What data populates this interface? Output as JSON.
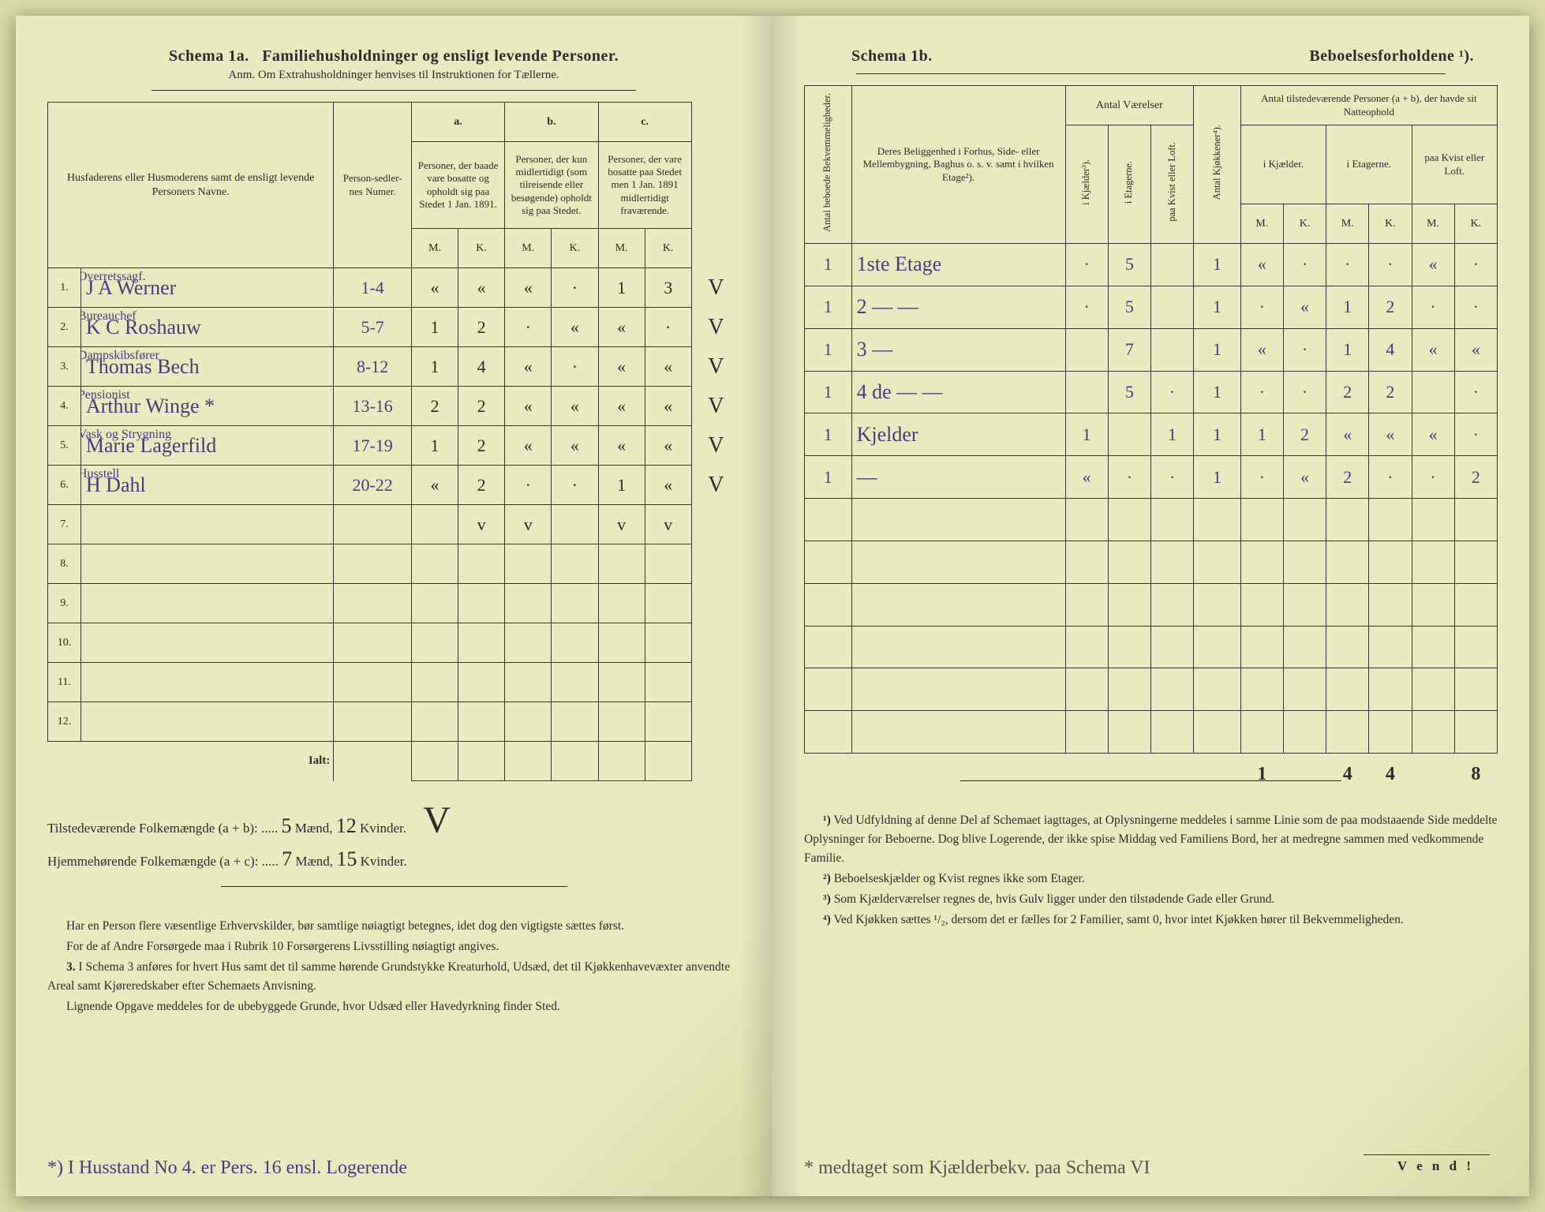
{
  "colors": {
    "paper": "#e9eac0",
    "paper_edge": "#d9daa8",
    "ink_print": "#2b2b2b",
    "ink_pen_purple": "#4b3a7a",
    "ink_pen_gray": "#555548"
  },
  "left": {
    "schema_label": "Schema 1a.",
    "schema_title": "Familiehusholdninger og ensligt levende Personer.",
    "anm_line": "Anm. Om Extrahusholdninger henvises til Instruktionen for Tællerne.",
    "col_headers": {
      "names": "Husfaderens eller Husmoderens samt de ensligt levende Personers Navne.",
      "person_num": "Person-sedler-nes Numer.",
      "a_label": "a.",
      "a_text": "Personer, der baade vare bosatte og opholdt sig paa Stedet 1 Jan. 1891.",
      "b_label": "b.",
      "b_text": "Personer, der kun midlertidigt (som tilreisende eller besøgende) opholdt sig paa Stedet.",
      "c_label": "c.",
      "c_text": "Personer, der vare bosatte paa Stedet men 1 Jan. 1891 midlertidigt fraværende.",
      "mk_m": "M.",
      "mk_k": "K."
    },
    "rows": [
      {
        "n": "1.",
        "tag": "Overretssagf.",
        "name": "J A Werner",
        "pn": "1-4",
        "aM": "«",
        "aK": "«",
        "bM": "«",
        "bK": "·",
        "cM": "1",
        "cK": "3",
        "chk": "V"
      },
      {
        "n": "2.",
        "tag": "Bureauchef",
        "name": "K C Roshauw",
        "pn": "5-7",
        "aM": "1",
        "aK": "2",
        "bM": "·",
        "bK": "«",
        "cM": "«",
        "cK": "·",
        "chk": "V"
      },
      {
        "n": "3.",
        "tag": "Dampskibsfører",
        "name": "Thomas Bech",
        "pn": "8-12",
        "aM": "1",
        "aK": "4",
        "bM": "«",
        "bK": "·",
        "cM": "«",
        "cK": "«",
        "chk": "V"
      },
      {
        "n": "4.",
        "tag": "Pensionist",
        "name": "Arthur Winge *",
        "pn": "13-16",
        "aM": "2",
        "aK": "2",
        "bM": "«",
        "bK": "«",
        "cM": "«",
        "cK": "«",
        "chk": "V"
      },
      {
        "n": "5.",
        "tag": "Vask og Strygning",
        "name": "Marie Lagerfild",
        "pn": "17-19",
        "aM": "1",
        "aK": "2",
        "bM": "«",
        "bK": "«",
        "cM": "«",
        "cK": "«",
        "chk": "V"
      },
      {
        "n": "6.",
        "tag": "Husstell",
        "name": "H Dahl",
        "pn": "20-22",
        "aM": "«",
        "aK": "2",
        "bM": "·",
        "bK": "·",
        "cM": "1",
        "cK": "«",
        "chk": "V"
      },
      {
        "n": "7.",
        "tag": "",
        "name": "",
        "pn": "",
        "aM": "",
        "aK": "v",
        "bM": "v",
        "bK": "",
        "cM": "v",
        "cK": "v",
        "chk": ""
      },
      {
        "n": "8.",
        "tag": "",
        "name": "",
        "pn": "",
        "aM": "",
        "aK": "",
        "bM": "",
        "bK": "",
        "cM": "",
        "cK": "",
        "chk": ""
      },
      {
        "n": "9.",
        "tag": "",
        "name": "",
        "pn": "",
        "aM": "",
        "aK": "",
        "bM": "",
        "bK": "",
        "cM": "",
        "cK": "",
        "chk": ""
      },
      {
        "n": "10.",
        "tag": "",
        "name": "",
        "pn": "",
        "aM": "",
        "aK": "",
        "bM": "",
        "bK": "",
        "cM": "",
        "cK": "",
        "chk": ""
      },
      {
        "n": "11.",
        "tag": "",
        "name": "",
        "pn": "",
        "aM": "",
        "aK": "",
        "bM": "",
        "bK": "",
        "cM": "",
        "cK": "",
        "chk": ""
      },
      {
        "n": "12.",
        "tag": "",
        "name": "",
        "pn": "",
        "aM": "",
        "aK": "",
        "bM": "",
        "bK": "",
        "cM": "",
        "cK": "",
        "chk": ""
      }
    ],
    "ialt": "Ialt:",
    "tilstede_label": "Tilstedeværende Folkemængde (a + b): .....",
    "tilstede_m": "5",
    "tilstede_k": "12",
    "hjemme_label": "Hjemmehørende Folkemængde (a + c): .....",
    "hjemme_m": "7",
    "hjemme_k": "15",
    "maend": "Mænd,",
    "kvinder": "Kvinder.",
    "big_check": "V",
    "foot_p1": "Har en Person flere væsentlige Erhvervskilder, bør samtlige nøiagtigt betegnes, idet dog den vigtigste sættes først.",
    "foot_p2": "For de af Andre Forsørgede maa i Rubrik 10 Forsørgerens Livsstilling nøiagtigt angives.",
    "foot_p3_lead": "3.",
    "foot_p3": "I Schema 3 anføres for hvert Hus samt det til samme hørende Grundstykke Kreaturhold, Udsæd, det til Kjøkkenhavevæxter anvendte Areal samt Kjøreredskaber efter Schemaets Anvisning.",
    "foot_p4": "Lignende Opgave meddeles for de ubebyggede Grunde, hvor Udsæd eller Havedyrkning finder Sted.",
    "bottom_note": "*) I Husstand No 4. er Pers. 16 ensl. Logerende"
  },
  "right": {
    "schema_label": "Schema 1b.",
    "schema_title": "Beboelsesforholdene ¹).",
    "col_headers": {
      "antal_bekv": "Antal beboede Bekvemmeligheder.",
      "belig": "Deres Beliggenhed i Forhus, Side- eller Mellembygning, Baghus o. s. v. samt i hvilken Etage²).",
      "antal_vaer": "Antal Værelser",
      "v_kj": "i Kjælder³).",
      "v_et": "i Etagerne.",
      "v_kl": "paa Kvist eller Loft.",
      "antal_kj": "Antal Kjøkkener⁴).",
      "pers_title": "Antal tilstedeværende Personer (a + b), der havde sit Natteophold",
      "p_kj": "i Kjælder.",
      "p_et": "i Etagerne.",
      "p_kl": "paa Kvist eller Loft.",
      "mk_m": "M.",
      "mk_k": "K."
    },
    "rows": [
      {
        "ab": "1",
        "bel": "1ste Etage",
        "vk": "·",
        "ve": "5",
        "vl": "",
        "kj": "1",
        "kjM": "«",
        "kjK": "·",
        "etM": "·",
        "etK": "·",
        "klM": "«",
        "klK": "·"
      },
      {
        "ab": "1",
        "bel": "2 — —",
        "vk": "·",
        "ve": "5",
        "vl": "",
        "kj": "1",
        "kjM": "·",
        "kjK": "«",
        "etM": "1",
        "etK": "2",
        "klM": "·",
        "klK": "·"
      },
      {
        "ab": "1",
        "bel": "3 —",
        "vk": "",
        "ve": "7",
        "vl": "",
        "kj": "1",
        "kjM": "«",
        "kjK": "·",
        "etM": "1",
        "etK": "4",
        "klM": "«",
        "klK": "«"
      },
      {
        "ab": "1",
        "bel": "4 de — —",
        "vk": "",
        "ve": "5",
        "vl": "·",
        "kj": "1",
        "kjM": "·",
        "kjK": "·",
        "etM": "2",
        "etK": "2",
        "klM": "",
        "klK": "·"
      },
      {
        "ab": "1",
        "bel": "Kjelder",
        "vk": "1",
        "ve": "",
        "vl": "1",
        "kj": "1",
        "kjM": "1",
        "kjK": "2",
        "etM": "«",
        "etK": "«",
        "klM": "«",
        "klK": "·"
      },
      {
        "ab": "1",
        "bel": "—",
        "vk": "«",
        "ve": "·",
        "vl": "·",
        "kj": "1",
        "kjM": "·",
        "kjK": "«",
        "etM": "2",
        "etK": "·",
        "klM": "·",
        "klK": "2"
      },
      {
        "ab": "",
        "bel": "",
        "vk": "",
        "ve": "",
        "vl": "",
        "kj": "",
        "kjM": "",
        "kjK": "",
        "etM": "",
        "etK": "",
        "klM": "",
        "klK": ""
      },
      {
        "ab": "",
        "bel": "",
        "vk": "",
        "ve": "",
        "vl": "",
        "kj": "",
        "kjM": "",
        "kjK": "",
        "etM": "",
        "etK": "",
        "klM": "",
        "klK": ""
      },
      {
        "ab": "",
        "bel": "",
        "vk": "",
        "ve": "",
        "vl": "",
        "kj": "",
        "kjM": "",
        "kjK": "",
        "etM": "",
        "etK": "",
        "klM": "",
        "klK": ""
      },
      {
        "ab": "",
        "bel": "",
        "vk": "",
        "ve": "",
        "vl": "",
        "kj": "",
        "kjM": "",
        "kjK": "",
        "etM": "",
        "etK": "",
        "klM": "",
        "klK": ""
      },
      {
        "ab": "",
        "bel": "",
        "vk": "",
        "ve": "",
        "vl": "",
        "kj": "",
        "kjM": "",
        "kjK": "",
        "etM": "",
        "etK": "",
        "klM": "",
        "klK": ""
      },
      {
        "ab": "",
        "bel": "",
        "vk": "",
        "ve": "",
        "vl": "",
        "kj": "",
        "kjM": "",
        "kjK": "",
        "etM": "",
        "etK": "",
        "klM": "",
        "klK": ""
      }
    ],
    "totals": {
      "kjM": "1",
      "kjK": "",
      "etM": "4",
      "etK": "4",
      "klM": "",
      "klK": "8"
    },
    "foot1_lead": "¹)",
    "foot1": "Ved Udfyldning af denne Del af Schemaet iagttages, at Oplysningerne meddeles i samme Linie som de paa modstaaende Side meddelte Oplysninger for Beboerne. Dog blive Logerende, der ikke spise Middag ved Familiens Bord, her at medregne sammen med vedkommende Familie.",
    "foot2_lead": "²)",
    "foot2": "Beboelseskjælder og Kvist regnes ikke som Etager.",
    "foot3_lead": "³)",
    "foot3": "Som Kjælderværelser regnes de, hvis Gulv ligger under den tilstødende Gade eller Grund.",
    "foot4_lead": "⁴)",
    "foot4": "Ved Kjøkken sættes ¹/₂, dersom det er fælles for 2 Familier, samt 0, hvor intet Kjøkken hører til Bekvemmeligheden.",
    "bottom_note": "* medtaget som Kjælderbekv. paa Schema VI",
    "vend": "V e n d !"
  }
}
